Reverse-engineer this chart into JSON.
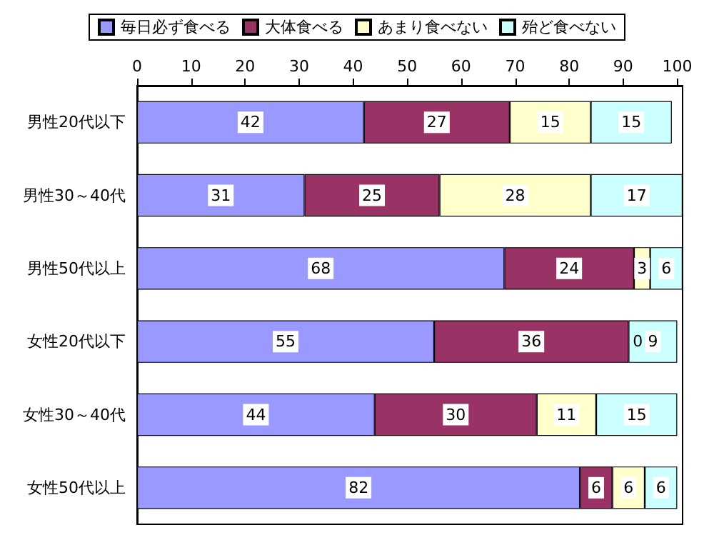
{
  "chart_data": {
    "type": "bar",
    "orientation": "horizontal",
    "stacked": true,
    "categories": [
      "男性20代以下",
      "男性30～40代",
      "男性50代以上",
      "女性20代以下",
      "女性30～40代",
      "女性50代以上"
    ],
    "series": [
      {
        "name": "毎日必ず食べる",
        "color": "#9999ff",
        "values": [
          42,
          31,
          68,
          55,
          44,
          82
        ]
      },
      {
        "name": "大体食べる",
        "color": "#993366",
        "values": [
          27,
          25,
          24,
          36,
          30,
          6
        ]
      },
      {
        "name": "あまり食べない",
        "color": "#ffffcc",
        "values": [
          15,
          28,
          3,
          0,
          11,
          6
        ]
      },
      {
        "name": "殆ど食べない",
        "color": "#ccffff",
        "values": [
          15,
          17,
          6,
          9,
          15,
          6
        ]
      }
    ],
    "xlim": [
      0,
      101
    ],
    "xticks": [
      0,
      10,
      20,
      30,
      40,
      50,
      60,
      70,
      80,
      90,
      100
    ],
    "data_labels": true,
    "legend": "top",
    "grid": false
  }
}
